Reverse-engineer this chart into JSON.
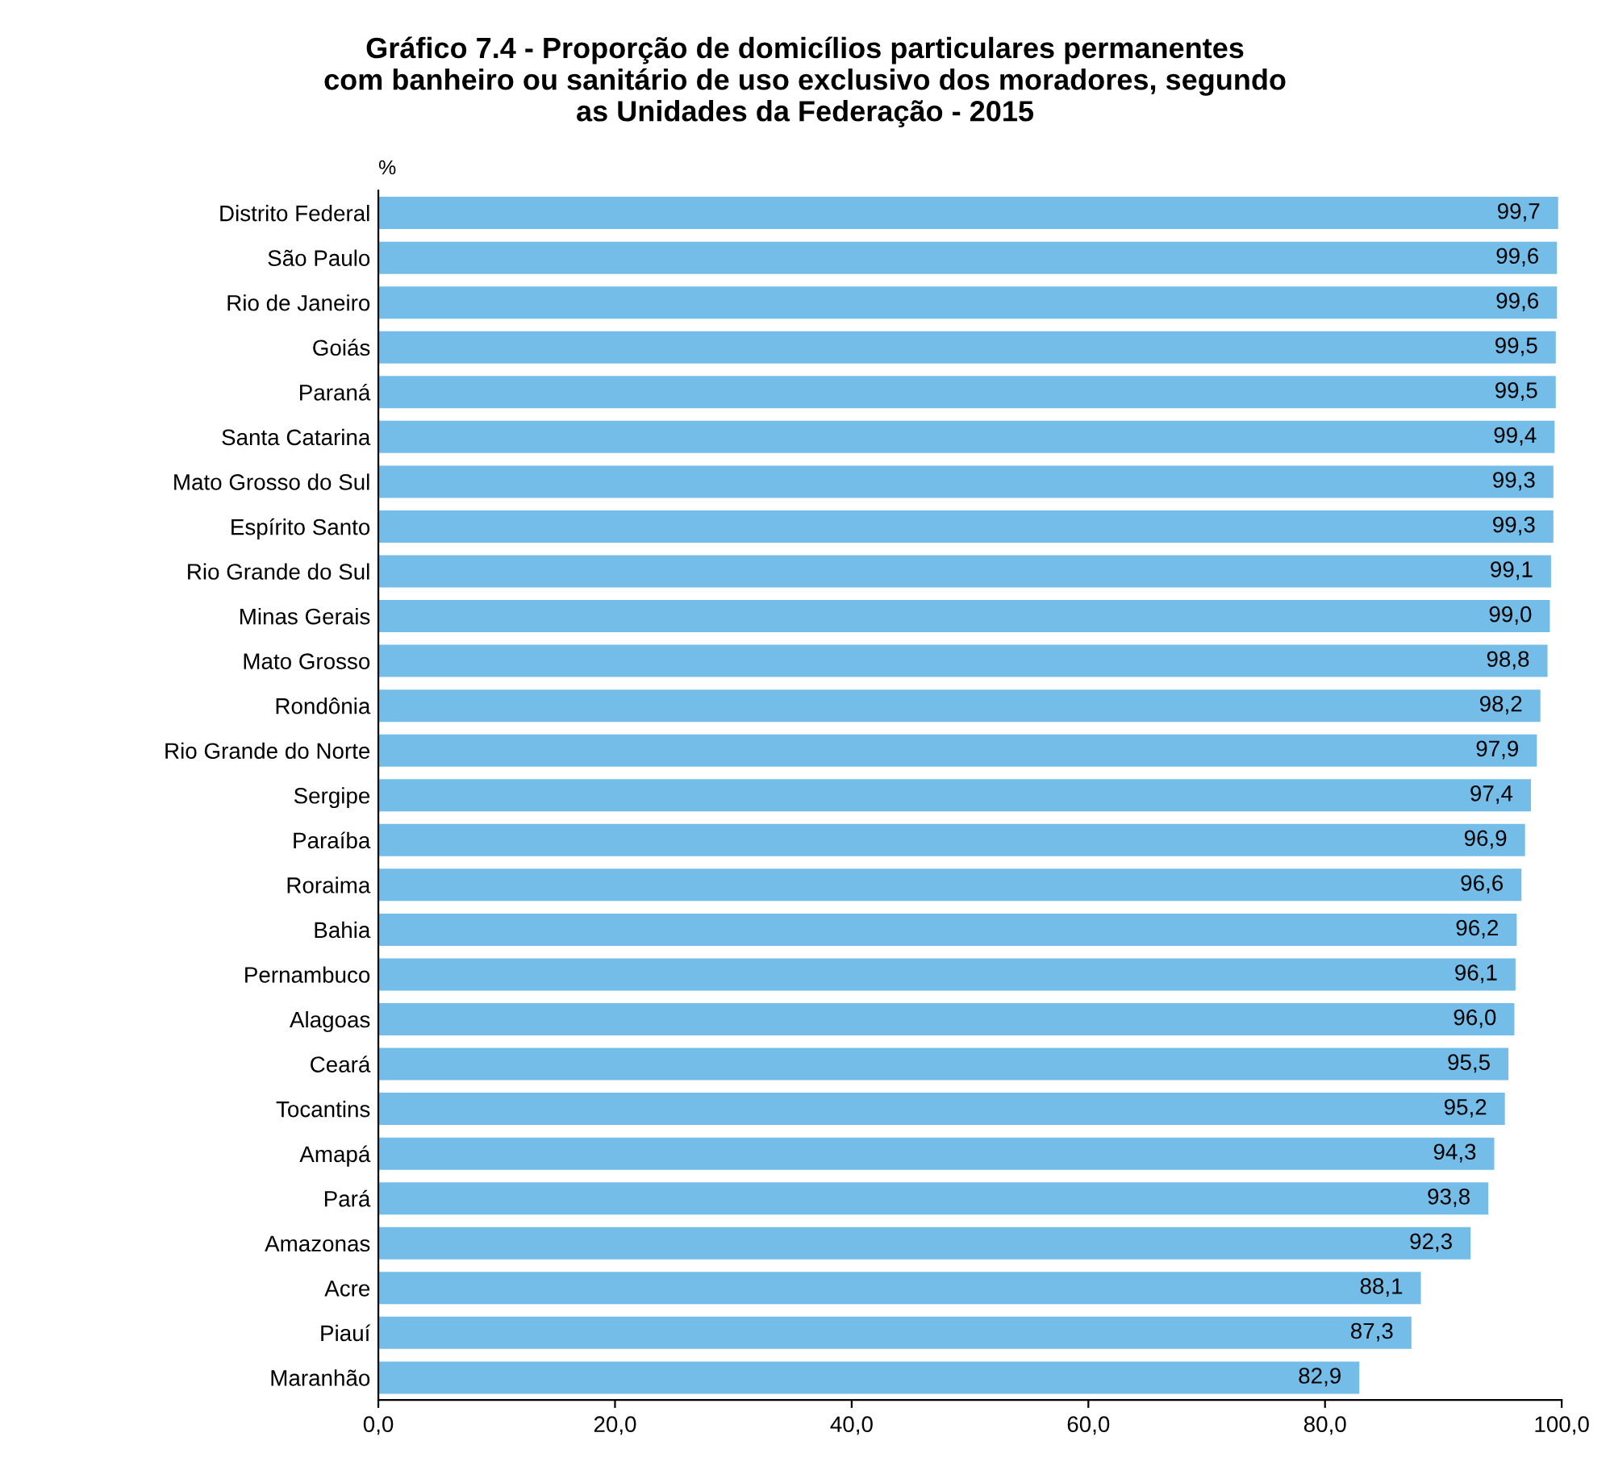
{
  "chart_data": {
    "type": "bar",
    "orientation": "horizontal",
    "title": "Gráfico 7.4 - Proporção de domicílios particulares permanentes\ncom banheiro ou sanitário de uso exclusivo dos moradores, segundo\nas Unidades da Federação - 2015",
    "ylabel": "%",
    "categories": [
      "Distrito Federal",
      "São Paulo",
      "Rio de Janeiro",
      "Goiás",
      "Paraná",
      "Santa Catarina",
      "Mato Grosso do Sul",
      "Espírito Santo",
      "Rio Grande do Sul",
      "Minas Gerais",
      "Mato Grosso",
      "Rondônia",
      "Rio Grande do Norte",
      "Sergipe",
      "Paraíba",
      "Roraima",
      "Bahia",
      "Pernambuco",
      "Alagoas",
      "Ceará",
      "Tocantins",
      "Amapá",
      "Pará",
      "Amazonas",
      "Acre",
      "Piauí",
      "Maranhão"
    ],
    "values": [
      99.7,
      99.6,
      99.6,
      99.5,
      99.5,
      99.4,
      99.3,
      99.3,
      99.1,
      99.0,
      98.8,
      98.2,
      97.9,
      97.4,
      96.9,
      96.6,
      96.2,
      96.1,
      96.0,
      95.5,
      95.2,
      94.3,
      93.8,
      92.3,
      88.1,
      87.3,
      82.9
    ],
    "value_labels": [
      "99,7",
      "99,6",
      "99,6",
      "99,5",
      "99,5",
      "99,4",
      "99,3",
      "99,3",
      "99,1",
      "99,0",
      "98,8",
      "98,2",
      "97,9",
      "97,4",
      "96,9",
      "96,6",
      "96,2",
      "96,1",
      "96,0",
      "95,5",
      "95,2",
      "94,3",
      "93,8",
      "92,3",
      "88,1",
      "87,3",
      "82,9"
    ],
    "color": "#74bde8",
    "xlim": [
      0,
      100
    ],
    "xticks": [
      {
        "value": 0,
        "label": "0,0"
      },
      {
        "value": 20,
        "label": "20,0"
      },
      {
        "value": 40,
        "label": "40,0"
      },
      {
        "value": 60,
        "label": "60,0"
      },
      {
        "value": 80,
        "label": "80,0"
      },
      {
        "value": 100,
        "label": "100,0"
      }
    ],
    "grid": false,
    "legend": false
  }
}
